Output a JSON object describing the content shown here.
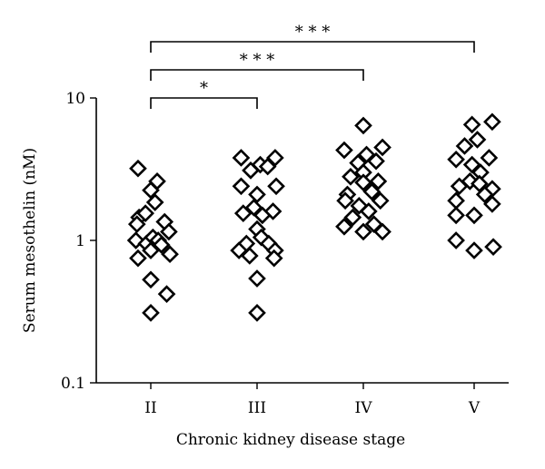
{
  "chart_data": {
    "type": "scatter",
    "title": "",
    "xlabel": "Chronic kidney disease stage",
    "ylabel": "Serum mesothelin (nM)",
    "yscale": "log",
    "ylim": [
      0.1,
      10
    ],
    "yticks": [
      {
        "value": 0.1,
        "label": "0.1"
      },
      {
        "value": 1,
        "label": "1"
      },
      {
        "value": 10,
        "label": "10"
      }
    ],
    "categories": [
      "II",
      "III",
      "IV",
      "V"
    ],
    "marker": "open-diamond",
    "grid": false,
    "series": [
      {
        "category": "II",
        "points": [
          {
            "offset": -0.12,
            "y": 3.2
          },
          {
            "offset": 0.06,
            "y": 2.6
          },
          {
            "offset": 0.0,
            "y": 2.25
          },
          {
            "offset": 0.04,
            "y": 1.85
          },
          {
            "offset": -0.11,
            "y": 1.45
          },
          {
            "offset": -0.13,
            "y": 1.3
          },
          {
            "offset": -0.05,
            "y": 1.55
          },
          {
            "offset": 0.13,
            "y": 1.35
          },
          {
            "offset": 0.17,
            "y": 1.15
          },
          {
            "offset": -0.14,
            "y": 1.0
          },
          {
            "offset": -0.04,
            "y": 0.95
          },
          {
            "offset": 0.02,
            "y": 1.05
          },
          {
            "offset": 0.07,
            "y": 1.0
          },
          {
            "offset": 0.1,
            "y": 0.93
          },
          {
            "offset": 0.18,
            "y": 0.8
          },
          {
            "offset": -0.12,
            "y": 0.75
          },
          {
            "offset": 0.0,
            "y": 0.85
          },
          {
            "offset": 0.0,
            "y": 0.53
          },
          {
            "offset": 0.15,
            "y": 0.42
          },
          {
            "offset": 0.0,
            "y": 0.31
          }
        ]
      },
      {
        "category": "III",
        "points": [
          {
            "offset": -0.15,
            "y": 3.8
          },
          {
            "offset": 0.17,
            "y": 3.8
          },
          {
            "offset": 0.03,
            "y": 3.4
          },
          {
            "offset": -0.06,
            "y": 3.1
          },
          {
            "offset": 0.1,
            "y": 3.3
          },
          {
            "offset": -0.15,
            "y": 2.4
          },
          {
            "offset": 0.18,
            "y": 2.4
          },
          {
            "offset": 0.0,
            "y": 2.1
          },
          {
            "offset": -0.03,
            "y": 1.7
          },
          {
            "offset": -0.13,
            "y": 1.55
          },
          {
            "offset": 0.15,
            "y": 1.6
          },
          {
            "offset": 0.05,
            "y": 1.5
          },
          {
            "offset": 0.0,
            "y": 1.2
          },
          {
            "offset": 0.04,
            "y": 1.05
          },
          {
            "offset": -0.1,
            "y": 0.95
          },
          {
            "offset": 0.11,
            "y": 0.95
          },
          {
            "offset": -0.17,
            "y": 0.85
          },
          {
            "offset": 0.17,
            "y": 0.85
          },
          {
            "offset": -0.07,
            "y": 0.78
          },
          {
            "offset": 0.16,
            "y": 0.75
          },
          {
            "offset": 0.0,
            "y": 0.54
          },
          {
            "offset": 0.0,
            "y": 0.31
          }
        ]
      },
      {
        "category": "IV",
        "points": [
          {
            "offset": 0.0,
            "y": 6.4
          },
          {
            "offset": 0.18,
            "y": 4.5
          },
          {
            "offset": -0.18,
            "y": 4.3
          },
          {
            "offset": 0.03,
            "y": 4.0
          },
          {
            "offset": -0.05,
            "y": 3.5
          },
          {
            "offset": 0.12,
            "y": 3.6
          },
          {
            "offset": 0.0,
            "y": 3.0
          },
          {
            "offset": -0.12,
            "y": 2.8
          },
          {
            "offset": 0.14,
            "y": 2.6
          },
          {
            "offset": 0.0,
            "y": 2.55
          },
          {
            "offset": -0.15,
            "y": 2.1
          },
          {
            "offset": 0.08,
            "y": 2.2
          },
          {
            "offset": -0.17,
            "y": 1.9
          },
          {
            "offset": 0.16,
            "y": 1.9
          },
          {
            "offset": -0.04,
            "y": 1.75
          },
          {
            "offset": 0.05,
            "y": 1.6
          },
          {
            "offset": -0.1,
            "y": 1.45
          },
          {
            "offset": 0.1,
            "y": 1.3
          },
          {
            "offset": -0.18,
            "y": 1.25
          },
          {
            "offset": 0.0,
            "y": 1.15
          },
          {
            "offset": 0.18,
            "y": 1.15
          }
        ]
      },
      {
        "category": "V",
        "points": [
          {
            "offset": 0.17,
            "y": 6.8
          },
          {
            "offset": -0.02,
            "y": 6.5
          },
          {
            "offset": 0.03,
            "y": 5.1
          },
          {
            "offset": -0.09,
            "y": 4.6
          },
          {
            "offset": -0.17,
            "y": 3.7
          },
          {
            "offset": 0.14,
            "y": 3.8
          },
          {
            "offset": -0.02,
            "y": 3.4
          },
          {
            "offset": 0.06,
            "y": 3.0
          },
          {
            "offset": -0.14,
            "y": 2.4
          },
          {
            "offset": 0.17,
            "y": 2.3
          },
          {
            "offset": -0.04,
            "y": 2.6
          },
          {
            "offset": 0.05,
            "y": 2.5
          },
          {
            "offset": 0.1,
            "y": 2.1
          },
          {
            "offset": -0.17,
            "y": 1.9
          },
          {
            "offset": 0.17,
            "y": 1.8
          },
          {
            "offset": -0.17,
            "y": 1.5
          },
          {
            "offset": 0.0,
            "y": 1.5
          },
          {
            "offset": -0.17,
            "y": 1.0
          },
          {
            "offset": 0.18,
            "y": 0.9
          },
          {
            "offset": 0.0,
            "y": 0.85
          }
        ]
      }
    ],
    "significance": [
      {
        "from": "II",
        "to": "III",
        "label": "*",
        "level": 0
      },
      {
        "from": "II",
        "to": "IV",
        "label": "***",
        "level": 1
      },
      {
        "from": "II",
        "to": "V",
        "label": "***",
        "level": 2
      }
    ]
  }
}
